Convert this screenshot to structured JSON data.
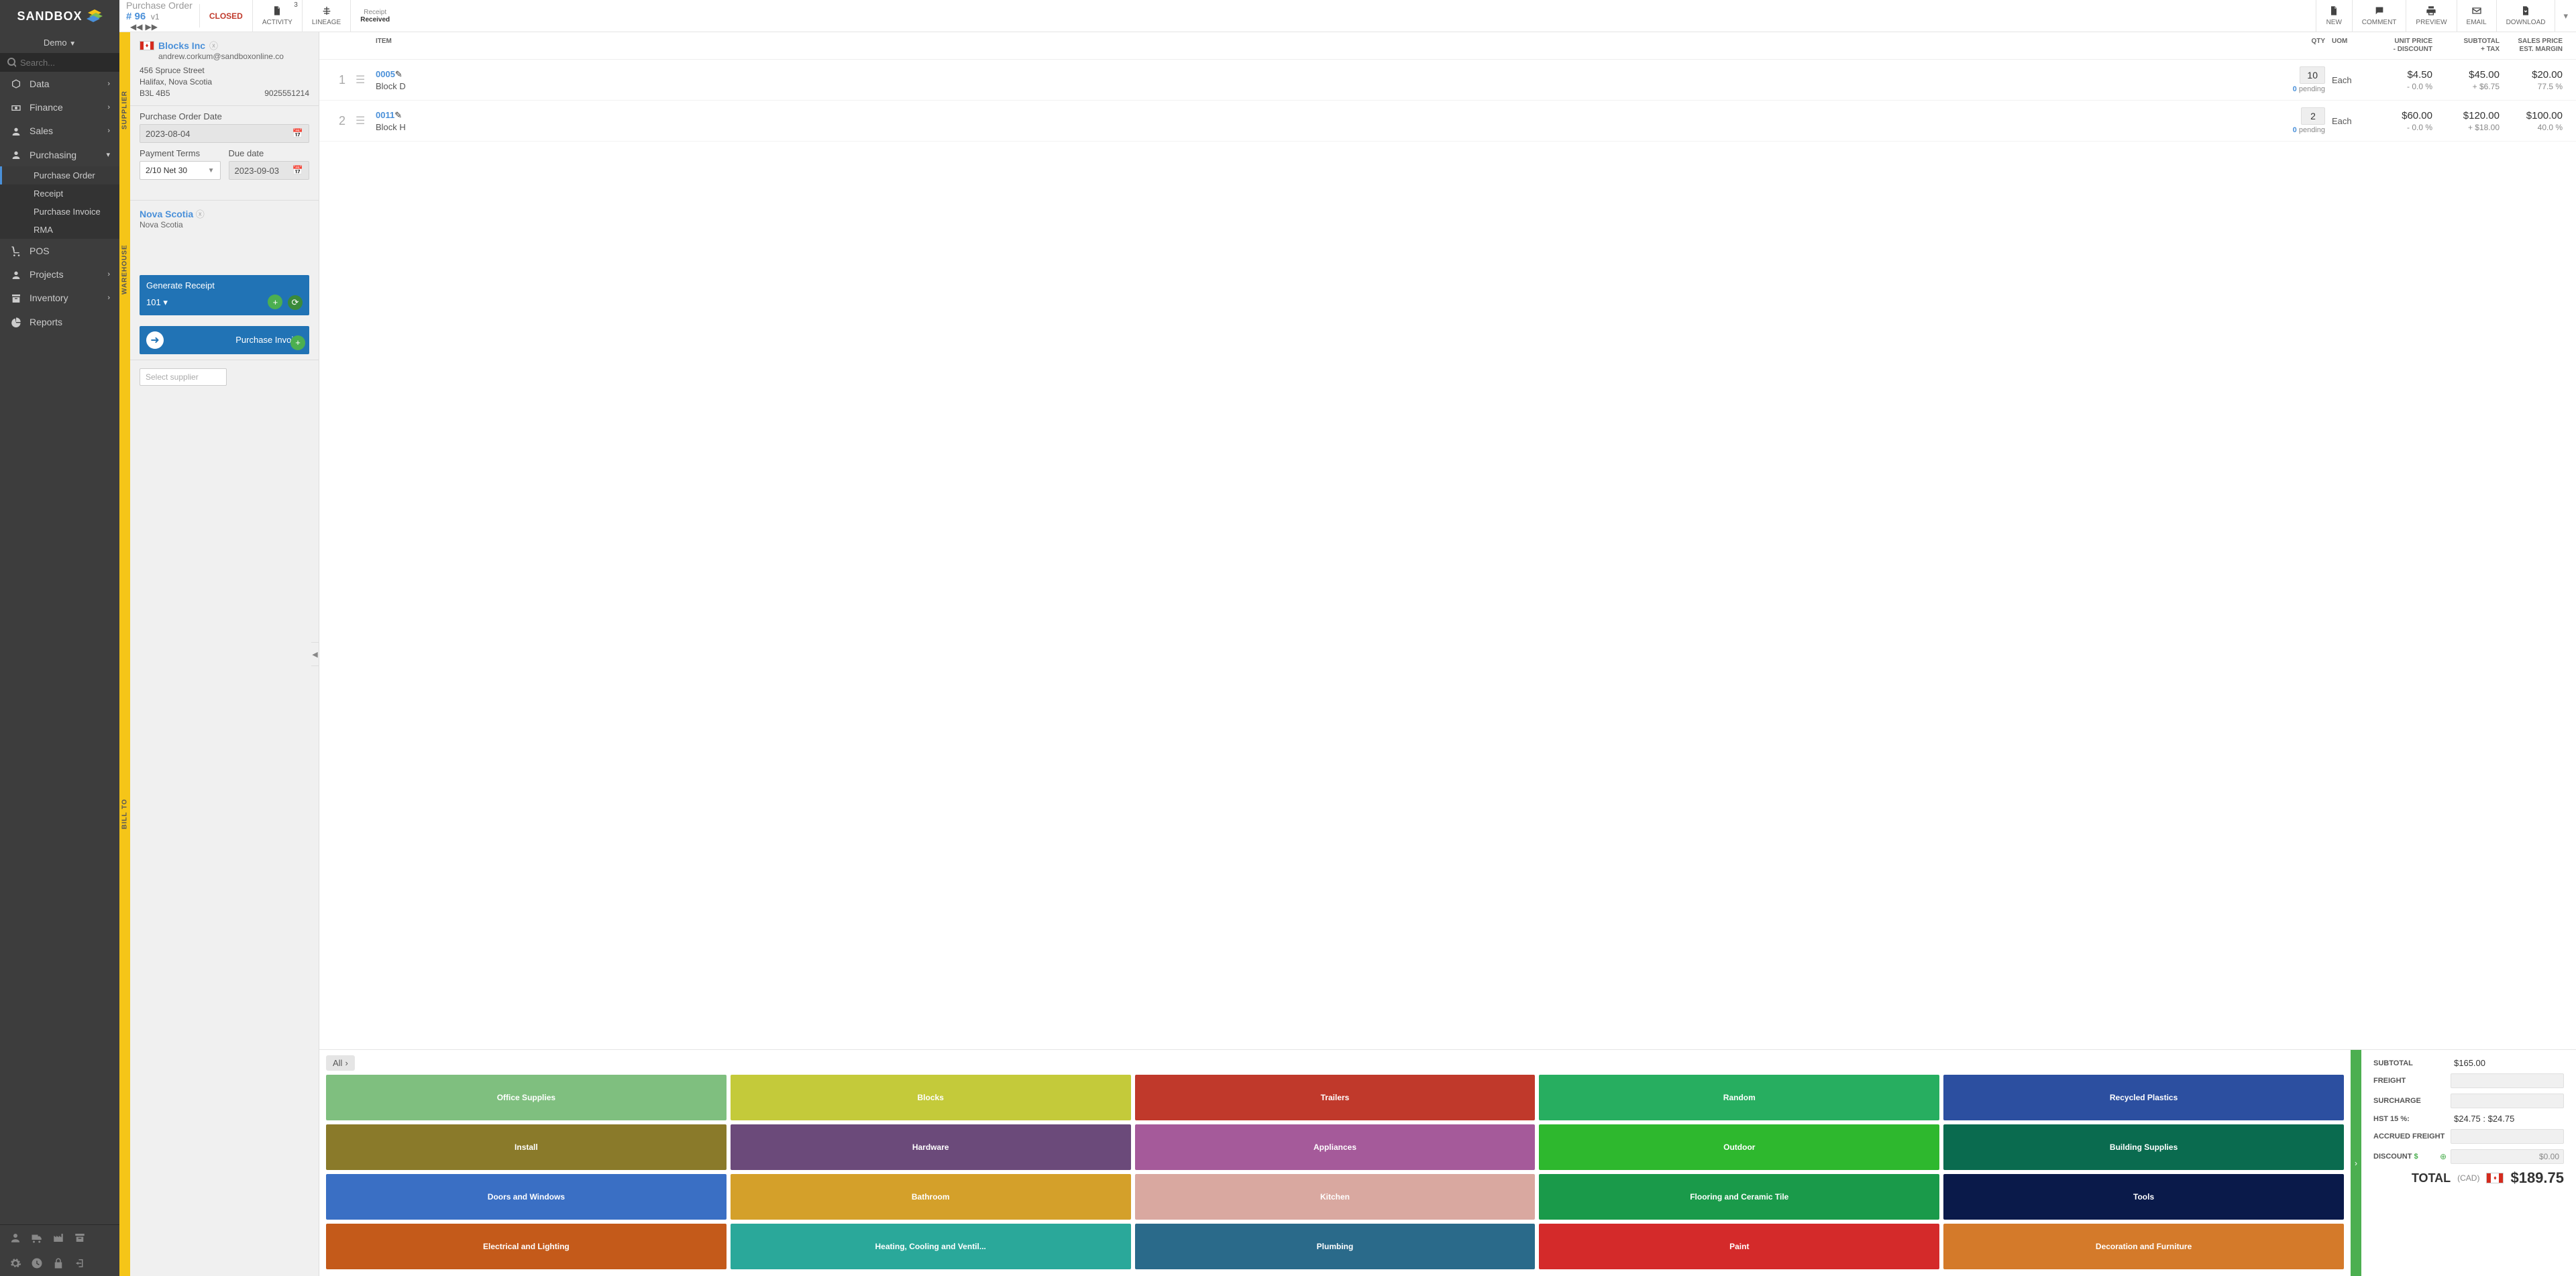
{
  "logo": "SANDBOX",
  "tenant": "Demo",
  "search_placeholder": "Search...",
  "nav": [
    {
      "label": "Data",
      "icon": "cube",
      "expand": true
    },
    {
      "label": "Finance",
      "icon": "cash",
      "expand": true
    },
    {
      "label": "Sales",
      "icon": "users",
      "expand": true
    },
    {
      "label": "Purchasing",
      "icon": "users",
      "expand": true,
      "open": true,
      "children": [
        {
          "label": "Purchase Order",
          "active": true
        },
        {
          "label": "Receipt"
        },
        {
          "label": "Purchase Invoice"
        },
        {
          "label": "RMA"
        }
      ]
    },
    {
      "label": "POS",
      "icon": "cart"
    },
    {
      "label": "Projects",
      "icon": "users",
      "expand": true
    },
    {
      "label": "Inventory",
      "icon": "box",
      "expand": true
    },
    {
      "label": "Reports",
      "icon": "pie"
    }
  ],
  "header": {
    "title": "Purchase Order",
    "num_prefix": "#",
    "num": "96",
    "version": "v1",
    "status": "CLOSED",
    "activity": {
      "label": "ACTIVITY",
      "badge": "3"
    },
    "lineage": "LINEAGE",
    "receipt_top": "Receipt",
    "receipt_bot": "Received",
    "actions": [
      {
        "label": "NEW",
        "icon": "file"
      },
      {
        "label": "COMMENT",
        "icon": "comment"
      },
      {
        "label": "PREVIEW",
        "icon": "print"
      },
      {
        "label": "EMAIL",
        "icon": "mail"
      },
      {
        "label": "DOWNLOAD",
        "icon": "download"
      }
    ]
  },
  "rails": {
    "supplier": "SUPPLIER",
    "warehouse": "WAREHOUSE",
    "billto": "BILL TO"
  },
  "supplier": {
    "name": "Blocks Inc",
    "email": "andrew.corkum@sandboxonline.co",
    "addr1": "456 Spruce Street",
    "addr2": "Halifax, Nova Scotia",
    "addr3": "B3L 4B5",
    "phone": "9025551214"
  },
  "po_date_label": "Purchase Order Date",
  "po_date": "2023-08-04",
  "terms_label": "Payment Terms",
  "terms_value": "2/10 Net 30",
  "due_label": "Due date",
  "due_value": "2023-09-03",
  "warehouse": {
    "name": "Nova Scotia",
    "sub": "Nova Scotia"
  },
  "gen_receipt": {
    "title": "Generate Receipt",
    "num": "101"
  },
  "purch_invoice": "Purchase Invoice",
  "select_supplier_placeholder": "Select supplier",
  "cols": {
    "item": "ITEM",
    "qty": "QTY",
    "uom": "UOM",
    "unit1": "UNIT PRICE",
    "unit2": "- DISCOUNT",
    "sub1": "SUBTOTAL",
    "sub2": "+ TAX",
    "sales1": "SALES PRICE",
    "sales2": "EST. MARGIN"
  },
  "lines": [
    {
      "idx": "1",
      "sku": "0005",
      "name": "Block D",
      "qty": "10",
      "pending": "0",
      "pending_lbl": "pending",
      "uom": "Each",
      "unit": "$4.50",
      "unit_sub": "- 0.0 %",
      "subtotal": "$45.00",
      "subtotal_sub": "+ $6.75",
      "sales": "$20.00",
      "sales_sub": "77.5 %"
    },
    {
      "idx": "2",
      "sku": "0011",
      "name": "Block H",
      "qty": "2",
      "pending": "0",
      "pending_lbl": "pending",
      "uom": "Each",
      "unit": "$60.00",
      "unit_sub": "- 0.0 %",
      "subtotal": "$120.00",
      "subtotal_sub": "+ $18.00",
      "sales": "$100.00",
      "sales_sub": "40.0 %"
    }
  ],
  "cat_all": "All",
  "categories": [
    {
      "label": "Office Supplies",
      "color": "#7fbf7f"
    },
    {
      "label": "Blocks",
      "color": "#c4ca3a"
    },
    {
      "label": "Trailers",
      "color": "#c0392b"
    },
    {
      "label": "Random",
      "color": "#27ae60"
    },
    {
      "label": "Recycled Plastics",
      "color": "#2c4fa0"
    },
    {
      "label": "Install",
      "color": "#8a7a2a"
    },
    {
      "label": "Hardware",
      "color": "#6b4a7a"
    },
    {
      "label": "Appliances",
      "color": "#a55a9a"
    },
    {
      "label": "Outdoor",
      "color": "#2eb82e"
    },
    {
      "label": "Building Supplies",
      "color": "#0a6b4f"
    },
    {
      "label": "Doors and Windows",
      "color": "#3a6fc4"
    },
    {
      "label": "Bathroom",
      "color": "#d4a02a"
    },
    {
      "label": "Kitchen",
      "color": "#d9a8a0"
    },
    {
      "label": "Flooring and Ceramic Tile",
      "color": "#1a9a4a"
    },
    {
      "label": "Tools",
      "color": "#0a1a4a"
    },
    {
      "label": "Electrical and Lighting",
      "color": "#c45a1a"
    },
    {
      "label": "Heating, Cooling and Ventil...",
      "color": "#2aa89a"
    },
    {
      "label": "Plumbing",
      "color": "#2a6a8a"
    },
    {
      "label": "Paint",
      "color": "#d42a2a"
    },
    {
      "label": "Decoration and Furniture",
      "color": "#d47a2a"
    }
  ],
  "totals": {
    "subtotal_lbl": "SUBTOTAL",
    "subtotal": "$165.00",
    "freight_lbl": "FREIGHT",
    "surcharge_lbl": "SURCHARGE",
    "hst_lbl": "HST 15 %:",
    "hst": "$24.75 : $24.75",
    "accrued_lbl": "ACCRUED FREIGHT",
    "discount_lbl": "DISCOUNT",
    "discount_val": "$0.00",
    "grand_lbl": "TOTAL",
    "grand_cur": "(CAD)",
    "grand": "$189.75"
  }
}
